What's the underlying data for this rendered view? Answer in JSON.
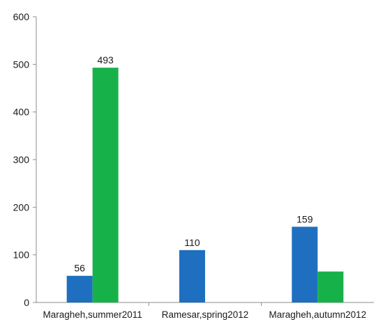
{
  "chart_data": {
    "type": "bar",
    "categories": [
      "Maragheh,summer2011",
      "Ramesar,spring2012",
      "Maragheh,autumn2012"
    ],
    "series": [
      {
        "values": [
          56,
          110,
          159
        ],
        "color": "#1f6fc0",
        "labels": [
          "56",
          "110",
          "159"
        ]
      },
      {
        "values": [
          493,
          null,
          65
        ],
        "color": "#17b14a",
        "labels": [
          "493",
          null,
          null
        ]
      }
    ],
    "ylim": [
      0,
      600
    ],
    "yticks": [
      0,
      100,
      200,
      300,
      400,
      500,
      600
    ],
    "grid": false,
    "legend": "none",
    "title": "",
    "xlabel": "",
    "ylabel": ""
  }
}
